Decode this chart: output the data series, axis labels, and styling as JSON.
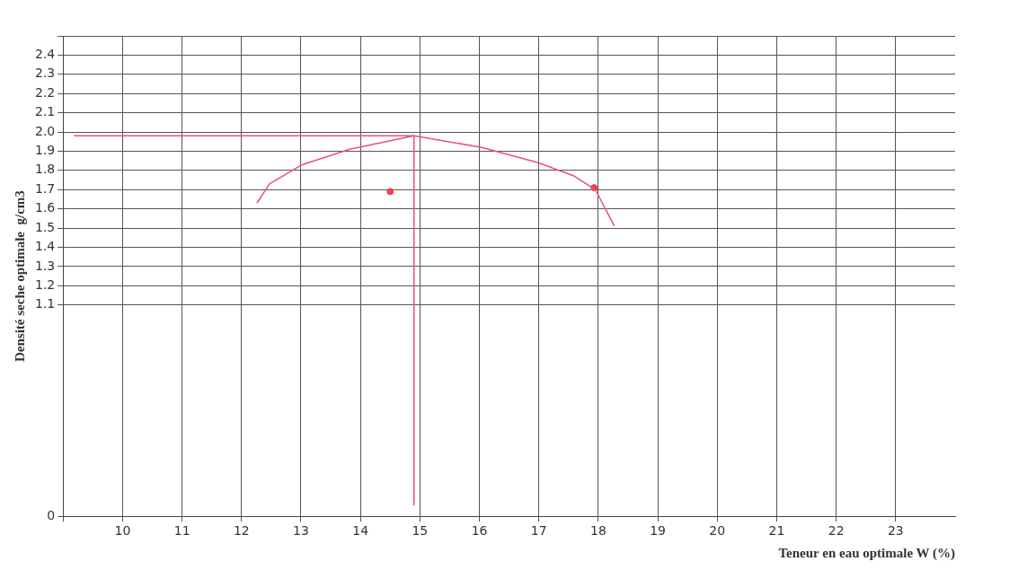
{
  "chart_data": {
    "type": "line",
    "xlabel": "Teneur en eau optimale W (%)",
    "ylabel": "Densité seche optimale  g/cm3",
    "xlim": [
      9,
      24
    ],
    "xticks": [
      {
        "value": 9,
        "label": null
      },
      10,
      11,
      12,
      13,
      14,
      15,
      16,
      17,
      18,
      19,
      20,
      21,
      22,
      23
    ],
    "ylim": [
      0,
      2.5
    ],
    "yticks": [
      0,
      1.1,
      1.2,
      1.3,
      1.4,
      1.5,
      1.6,
      1.7,
      1.8,
      1.9,
      "2.0",
      2.1,
      2.2,
      2.3,
      2.4,
      {
        "value": 2.5,
        "label": null
      }
    ],
    "grid": true,
    "legend": false,
    "series": [
      {
        "color": "#e8507a",
        "marker": "none",
        "line_style": "solid",
        "x": [
          12.26,
          12.47,
          13.02,
          13.82,
          14.9,
          16.04,
          16.99,
          17.6,
          17.95,
          18.27
        ],
        "values": [
          1.63,
          1.73,
          1.83,
          1.91,
          1.98,
          1.92,
          1.84,
          1.77,
          1.7,
          1.51
        ]
      },
      {
        "type": "scatter",
        "color": "#e8434a",
        "marker": "circle",
        "x": [
          14.5,
          17.93
        ],
        "values": [
          1.69,
          1.71
        ]
      }
    ],
    "ref_lines": [
      {
        "axis": "x",
        "value": 14.9,
        "color": "#e8507a"
      },
      {
        "axis": "y",
        "value": 1.98,
        "color": "#e8507a"
      }
    ]
  }
}
